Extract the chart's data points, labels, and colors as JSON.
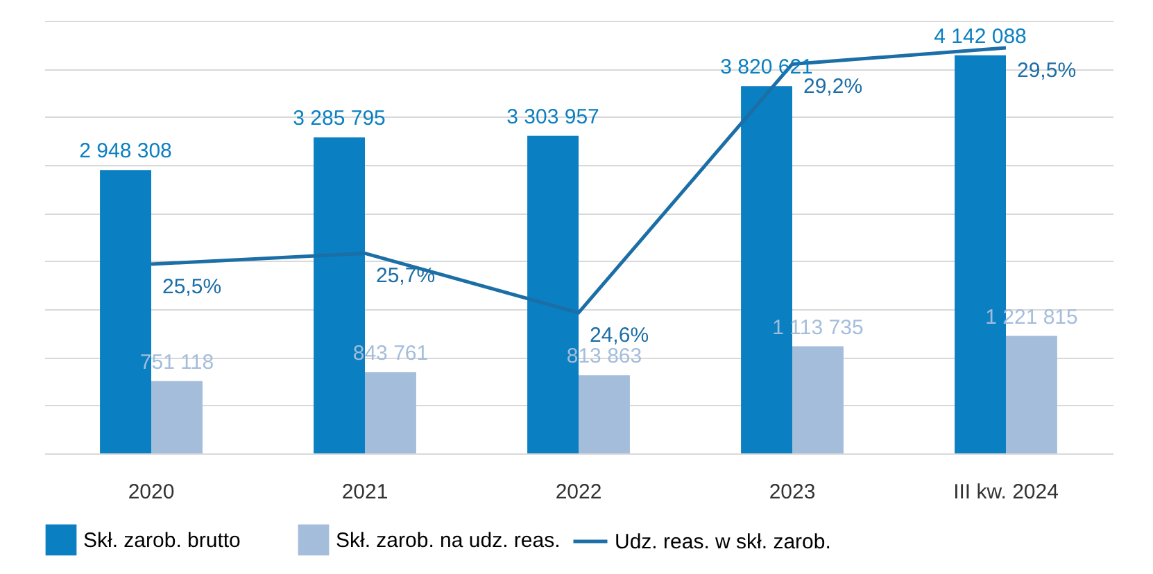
{
  "chart_data": {
    "type": "bar",
    "categories": [
      "2020",
      "2021",
      "2022",
      "2023",
      "III kw. 2024"
    ],
    "ylim": [
      0,
      4500000
    ],
    "yticks": [
      {
        "value": 0,
        "label": null
      },
      {
        "value": 500000,
        "label": null
      },
      {
        "value": 1000000,
        "label": null
      },
      {
        "value": 1500000,
        "label": null
      },
      {
        "value": 2000000,
        "label": null
      },
      {
        "value": 2500000,
        "label": null
      },
      {
        "value": 3000000,
        "label": null
      },
      {
        "value": 3500000,
        "label": null
      },
      {
        "value": 4000000,
        "label": null
      },
      {
        "value": 4500000,
        "label": null
      }
    ],
    "y2lim": [
      22,
      30
    ],
    "tick_labels": "x",
    "grid": "y",
    "legend": "bottom",
    "series": [
      {
        "name": "Skł. zarob. brutto",
        "color": "#0a7fc1",
        "values": [
          2948308,
          3285795,
          3303957,
          3820621,
          4142088
        ],
        "value_labels": [
          "2 948 308",
          "3 285 795",
          "3 303 957",
          "3 820 621",
          "4 142 088"
        ]
      },
      {
        "name": "Skł. zarob. na udz. reas.",
        "color": "#a4bddb",
        "values": [
          751118,
          843761,
          813863,
          1113735,
          1221815
        ],
        "value_labels": [
          "751 118",
          "843 761",
          "813 863",
          "1 113 735",
          "1 221 815"
        ]
      },
      {
        "name": "Udz. reas. w skł. zarob.",
        "type": "line",
        "axis": "y2",
        "color": "#1c6ea6",
        "marker": "none",
        "values": [
          25.5,
          25.7,
          24.6,
          29.2,
          29.5
        ],
        "value_labels": [
          "25,5%",
          "25,7%",
          "24,6%",
          "29,2%",
          "29,5%"
        ]
      }
    ]
  }
}
